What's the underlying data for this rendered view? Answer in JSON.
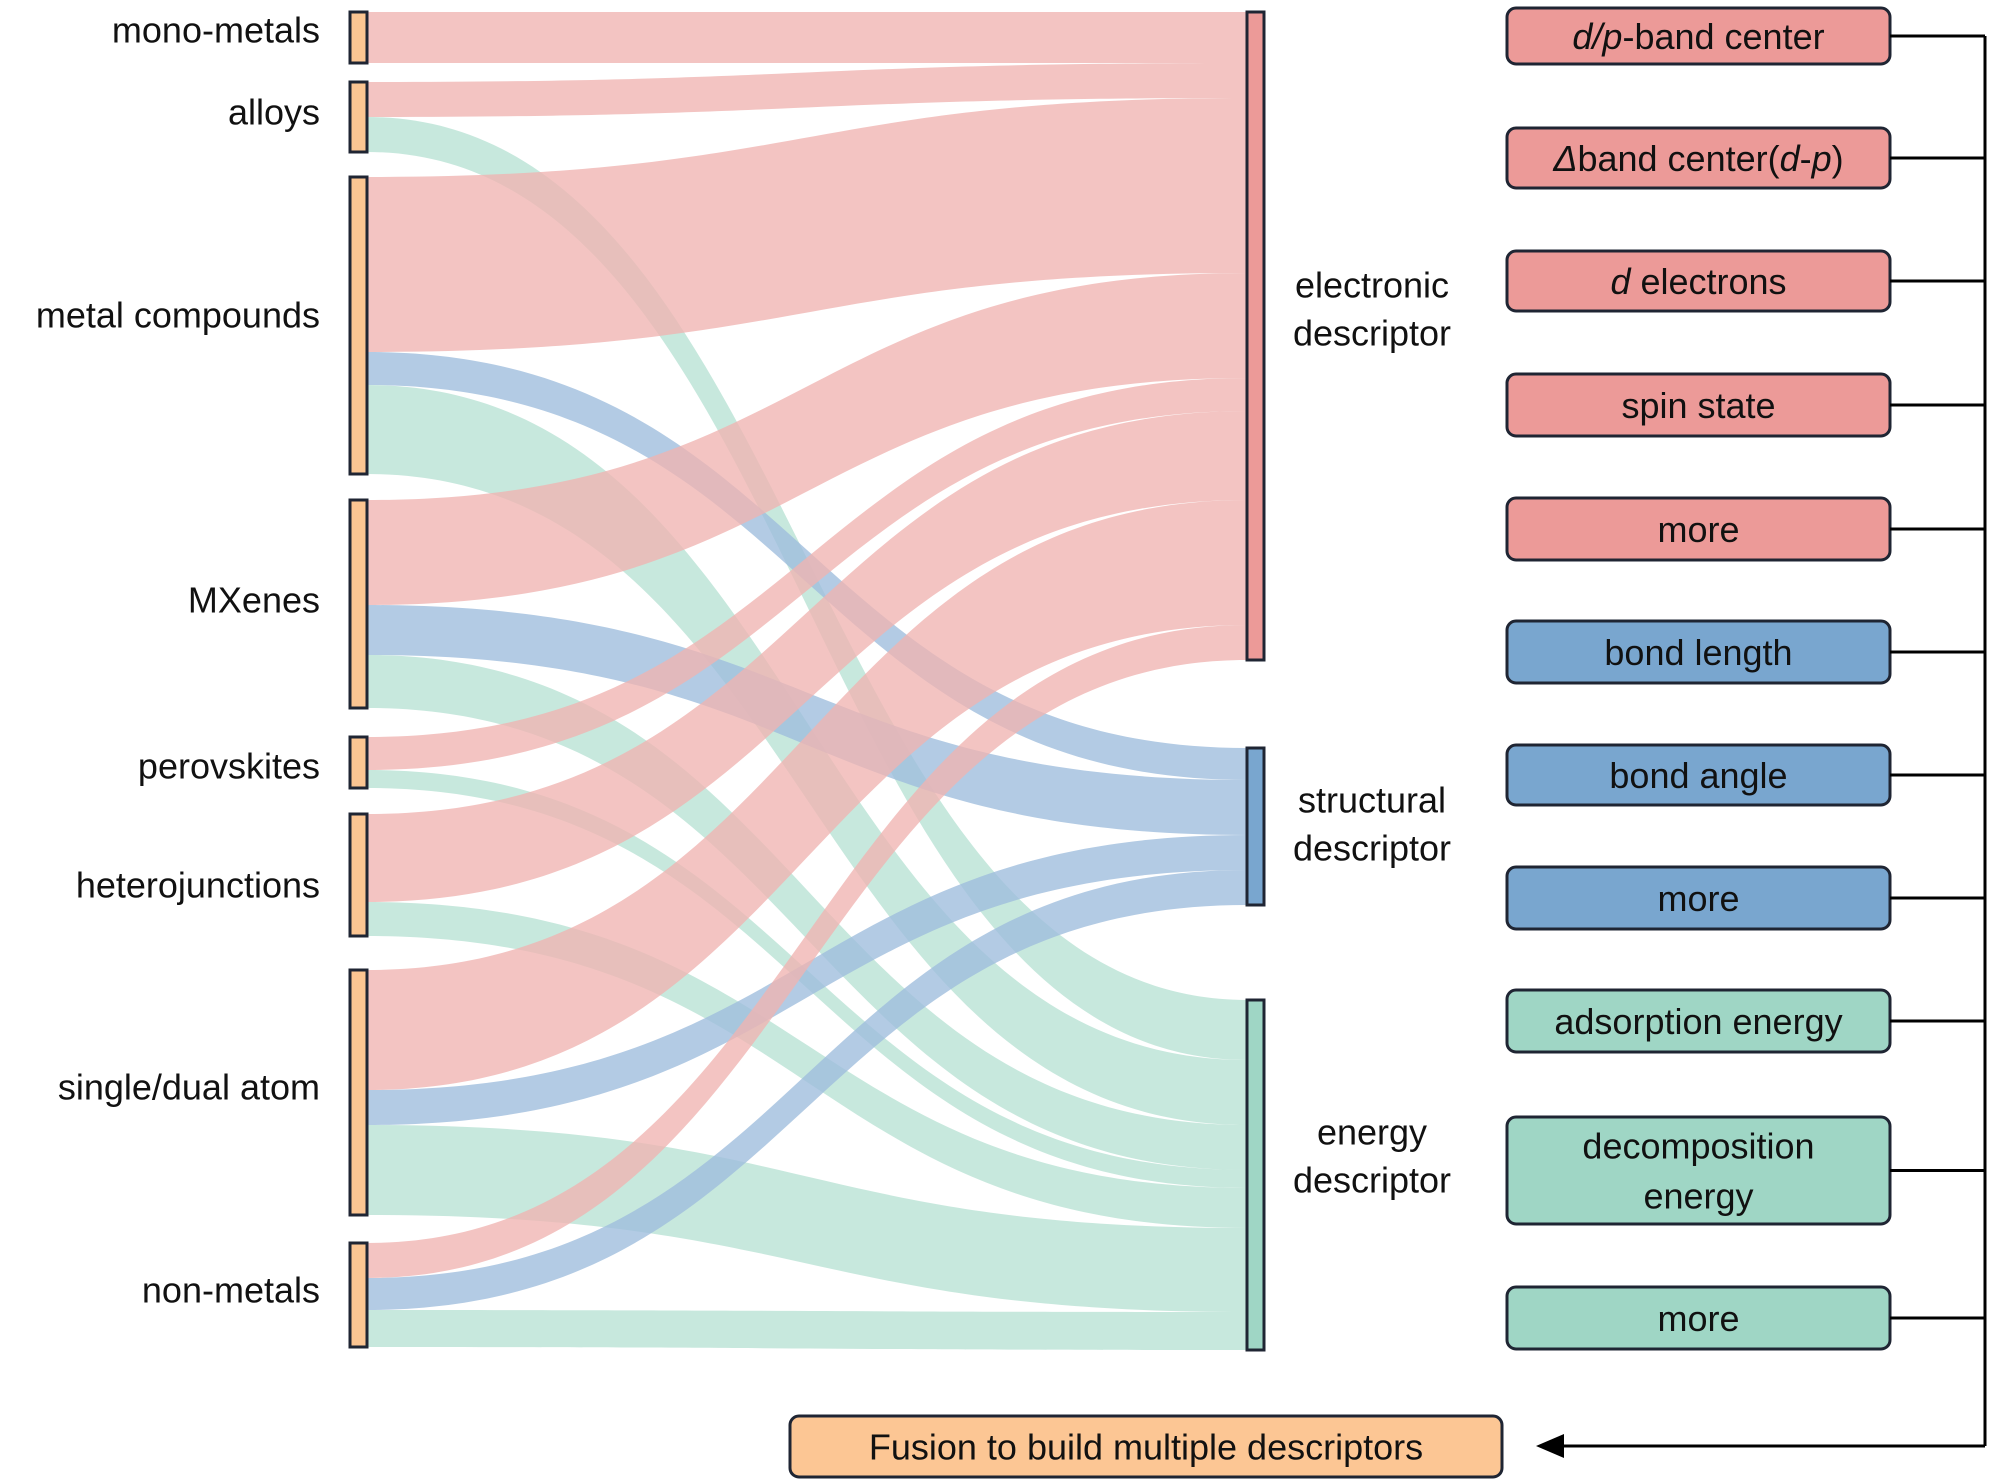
{
  "colors": {
    "electronic": "#ec9a98",
    "electronic_flow": "#f0b3b1",
    "structural": "#79a6cf",
    "structural_flow": "#9dbcdd",
    "energy": "#9fd6c5",
    "energy_flow": "#b7e1d3",
    "material": "#fbc592",
    "fusion": "#fcc694",
    "stroke": "#1f2533",
    "text": "#111111"
  },
  "materials": [
    {
      "id": "mono-metals",
      "label": "mono-metals"
    },
    {
      "id": "alloys",
      "label": "alloys"
    },
    {
      "id": "metal-compounds",
      "label": "metal compounds"
    },
    {
      "id": "mxenes",
      "label": "MXenes"
    },
    {
      "id": "perovskites",
      "label": "perovskites"
    },
    {
      "id": "heterojunctions",
      "label": "heterojunctions"
    },
    {
      "id": "single-dual-atom",
      "label": "single/dual atom"
    },
    {
      "id": "non-metals",
      "label": "non-metals"
    }
  ],
  "descriptor_groups": [
    {
      "id": "electronic",
      "label_lines": [
        "electronic",
        "descriptor"
      ]
    },
    {
      "id": "structural",
      "label_lines": [
        "structural",
        "descriptor"
      ]
    },
    {
      "id": "energy",
      "label_lines": [
        "energy",
        "descriptor"
      ]
    }
  ],
  "descriptor_items": [
    {
      "id": "dp-band-center",
      "group": "electronic",
      "lines": [
        [
          {
            "t": "d/p",
            "i": true
          },
          {
            "t": "-band center",
            "i": false
          }
        ]
      ]
    },
    {
      "id": "delta-band-center",
      "group": "electronic",
      "lines": [
        [
          {
            "t": "Δ",
            "i": true
          },
          {
            "t": "band center(",
            "i": false
          },
          {
            "t": "d",
            "i": true
          },
          {
            "t": "-",
            "i": false
          },
          {
            "t": "p",
            "i": true
          },
          {
            "t": ")",
            "i": false
          }
        ]
      ]
    },
    {
      "id": "d-electrons",
      "group": "electronic",
      "lines": [
        [
          {
            "t": "d",
            "i": true
          },
          {
            "t": " electrons",
            "i": false
          }
        ]
      ]
    },
    {
      "id": "spin-state",
      "group": "electronic",
      "lines": [
        [
          {
            "t": "spin state",
            "i": false
          }
        ]
      ]
    },
    {
      "id": "more-electronic",
      "group": "electronic",
      "lines": [
        [
          {
            "t": "more",
            "i": false
          }
        ]
      ]
    },
    {
      "id": "bond-length",
      "group": "structural",
      "lines": [
        [
          {
            "t": "bond length",
            "i": false
          }
        ]
      ]
    },
    {
      "id": "bond-angle",
      "group": "structural",
      "lines": [
        [
          {
            "t": "bond angle",
            "i": false
          }
        ]
      ]
    },
    {
      "id": "more-structural",
      "group": "structural",
      "lines": [
        [
          {
            "t": "more",
            "i": false
          }
        ]
      ]
    },
    {
      "id": "adsorption-energy",
      "group": "energy",
      "lines": [
        [
          {
            "t": "adsorption energy",
            "i": false
          }
        ]
      ]
    },
    {
      "id": "decomposition-energy",
      "group": "energy",
      "lines": [
        [
          {
            "t": "decomposition",
            "i": false
          }
        ],
        [
          {
            "t": "energy",
            "i": false
          }
        ]
      ]
    },
    {
      "id": "more-energy",
      "group": "energy",
      "lines": [
        [
          {
            "t": "more",
            "i": false
          }
        ]
      ]
    }
  ],
  "fusion": {
    "label": "Fusion to build multiple descriptors"
  }
}
